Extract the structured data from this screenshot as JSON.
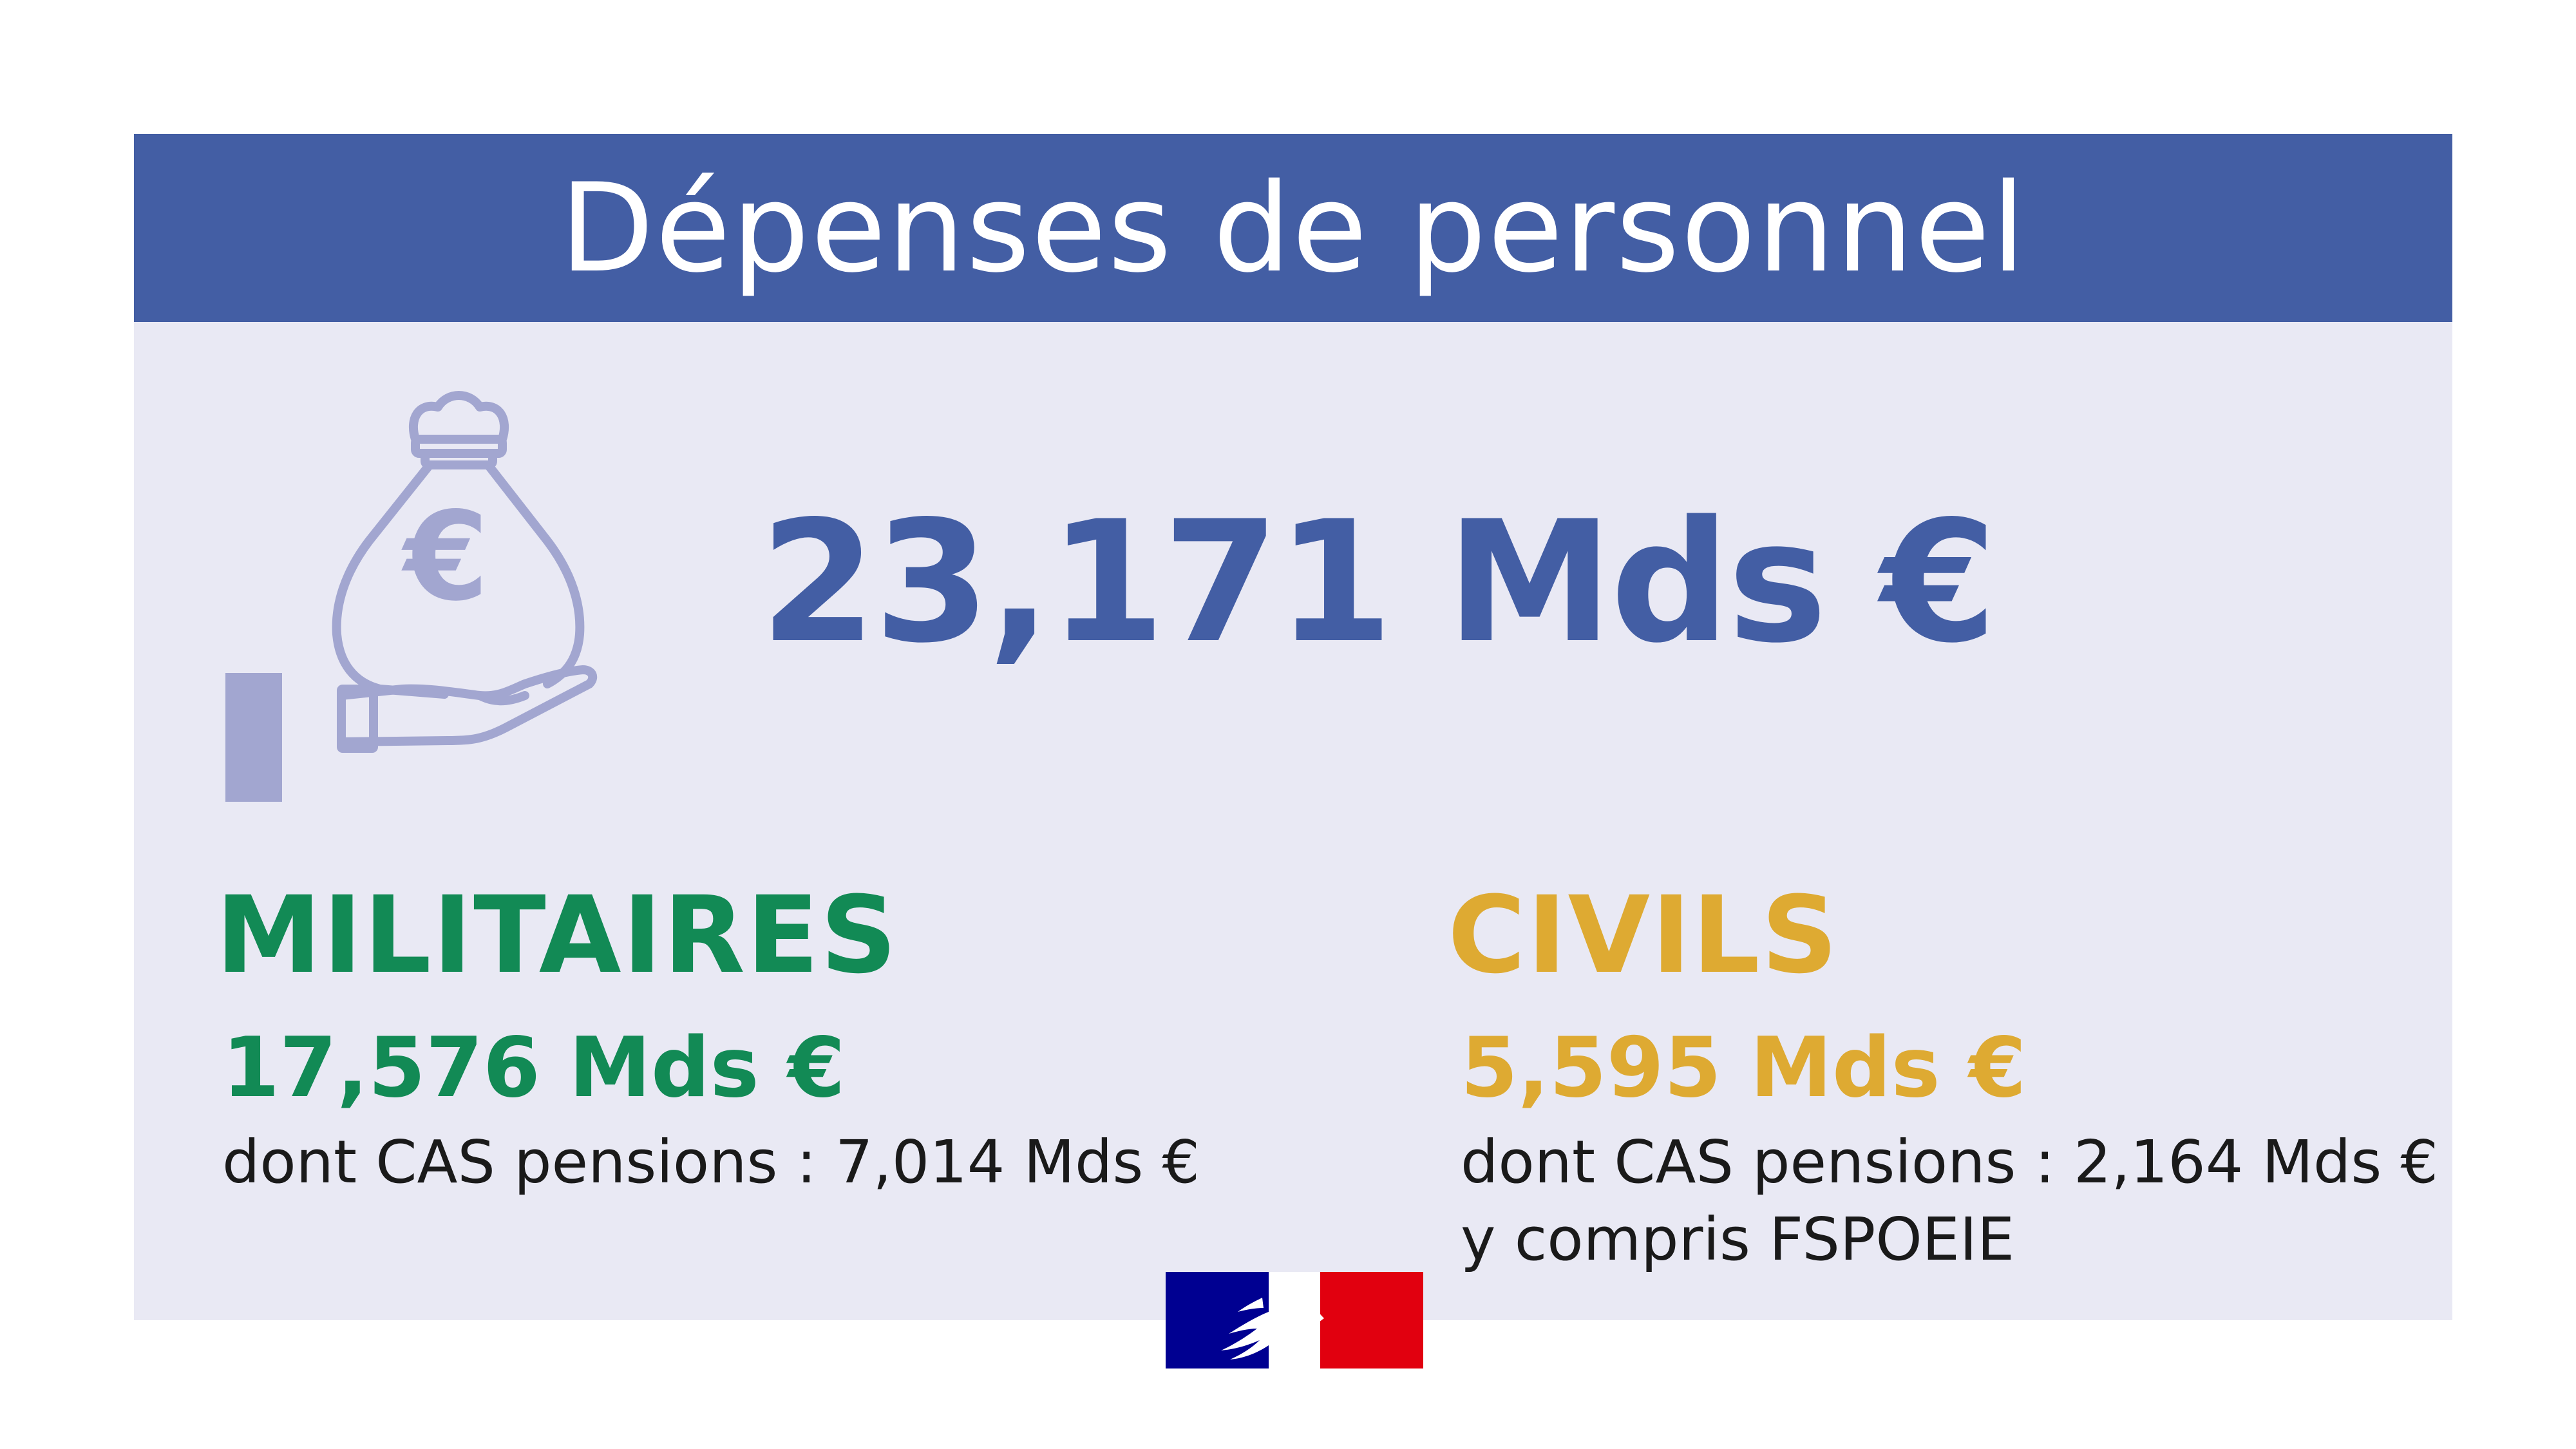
{
  "header": {
    "title": "Dépenses de personnel"
  },
  "total": {
    "value": "23,171 Mds €",
    "icon": "money-bag-hand-icon"
  },
  "militaires": {
    "heading": "MILITAIRES",
    "amount": "17,576 Mds €",
    "detail_line1": "dont CAS pensions :  7,014 Mds €"
  },
  "civils": {
    "heading": "CIVILS",
    "amount": "5,595 Mds €",
    "detail_line1": "dont CAS pensions :  2,164 Mds €",
    "detail_line2": "y compris FSPOEIE"
  },
  "logo": {
    "icon": "marianne-logo-icon"
  },
  "colors": {
    "primary_blue": "#435ea4",
    "card_background": "#e9e9f4",
    "icon_lavender": "#a2a6d0",
    "militaires_green": "#128a55",
    "civils_gold": "#deaa32",
    "flag_blue": "#000091",
    "flag_red": "#e1000f"
  }
}
